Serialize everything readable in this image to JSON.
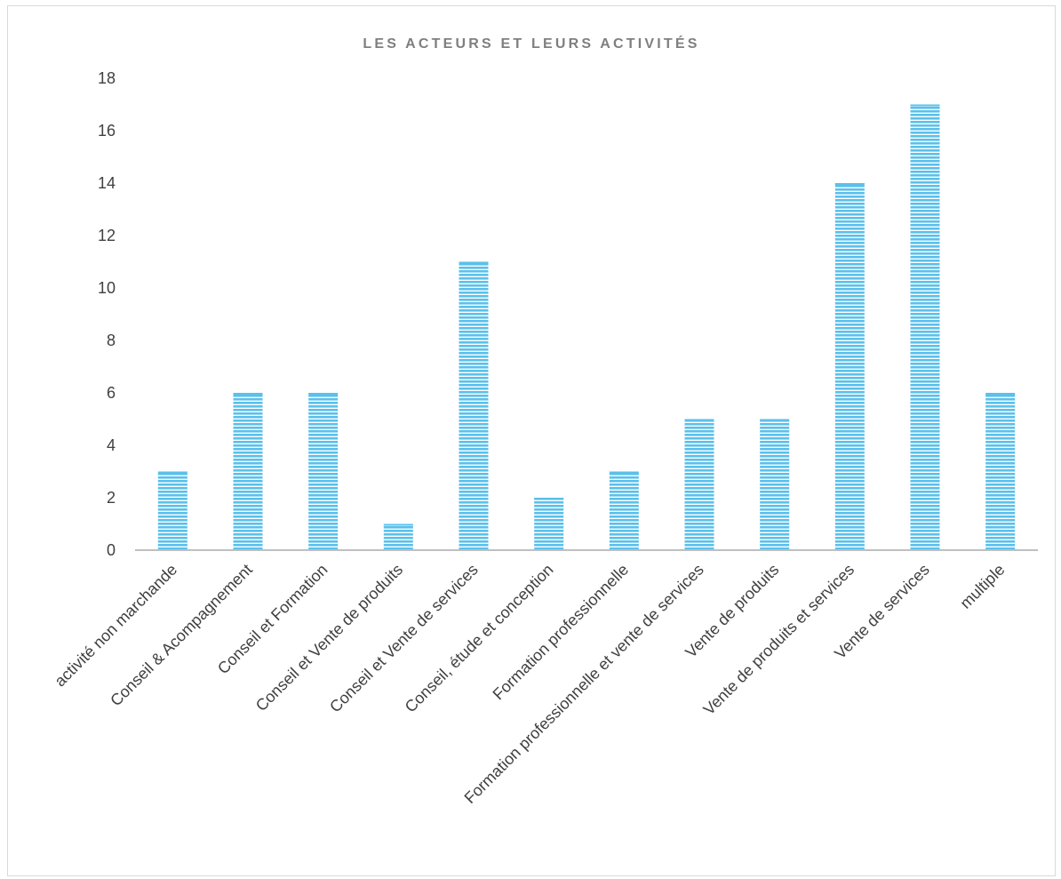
{
  "chart_data": {
    "type": "bar",
    "title": "LES ACTEURS ET LEURS ACTIVITÉS",
    "xlabel": "",
    "ylabel": "",
    "ylim": [
      0,
      18
    ],
    "yticks": [
      0,
      2,
      4,
      6,
      8,
      10,
      12,
      14,
      16,
      18
    ],
    "grid": false,
    "legend": "none",
    "bar_color": "#5bc0eb",
    "bar_pattern": "horizontal-stripes",
    "categories": [
      "activité non marchande",
      "Conseil & Acompagnement",
      "Conseil et Formation",
      "Conseil et Vente de produits",
      "Conseil et Vente de services",
      "Conseil, étude et conception",
      "Formation professionnelle",
      "Formation professionnelle et vente de services",
      "Vente de produits",
      "Vente de produits et services",
      "Vente de services",
      "multiple"
    ],
    "values": [
      3,
      6,
      6,
      1,
      11,
      2,
      3,
      5,
      5,
      14,
      17,
      6
    ]
  }
}
